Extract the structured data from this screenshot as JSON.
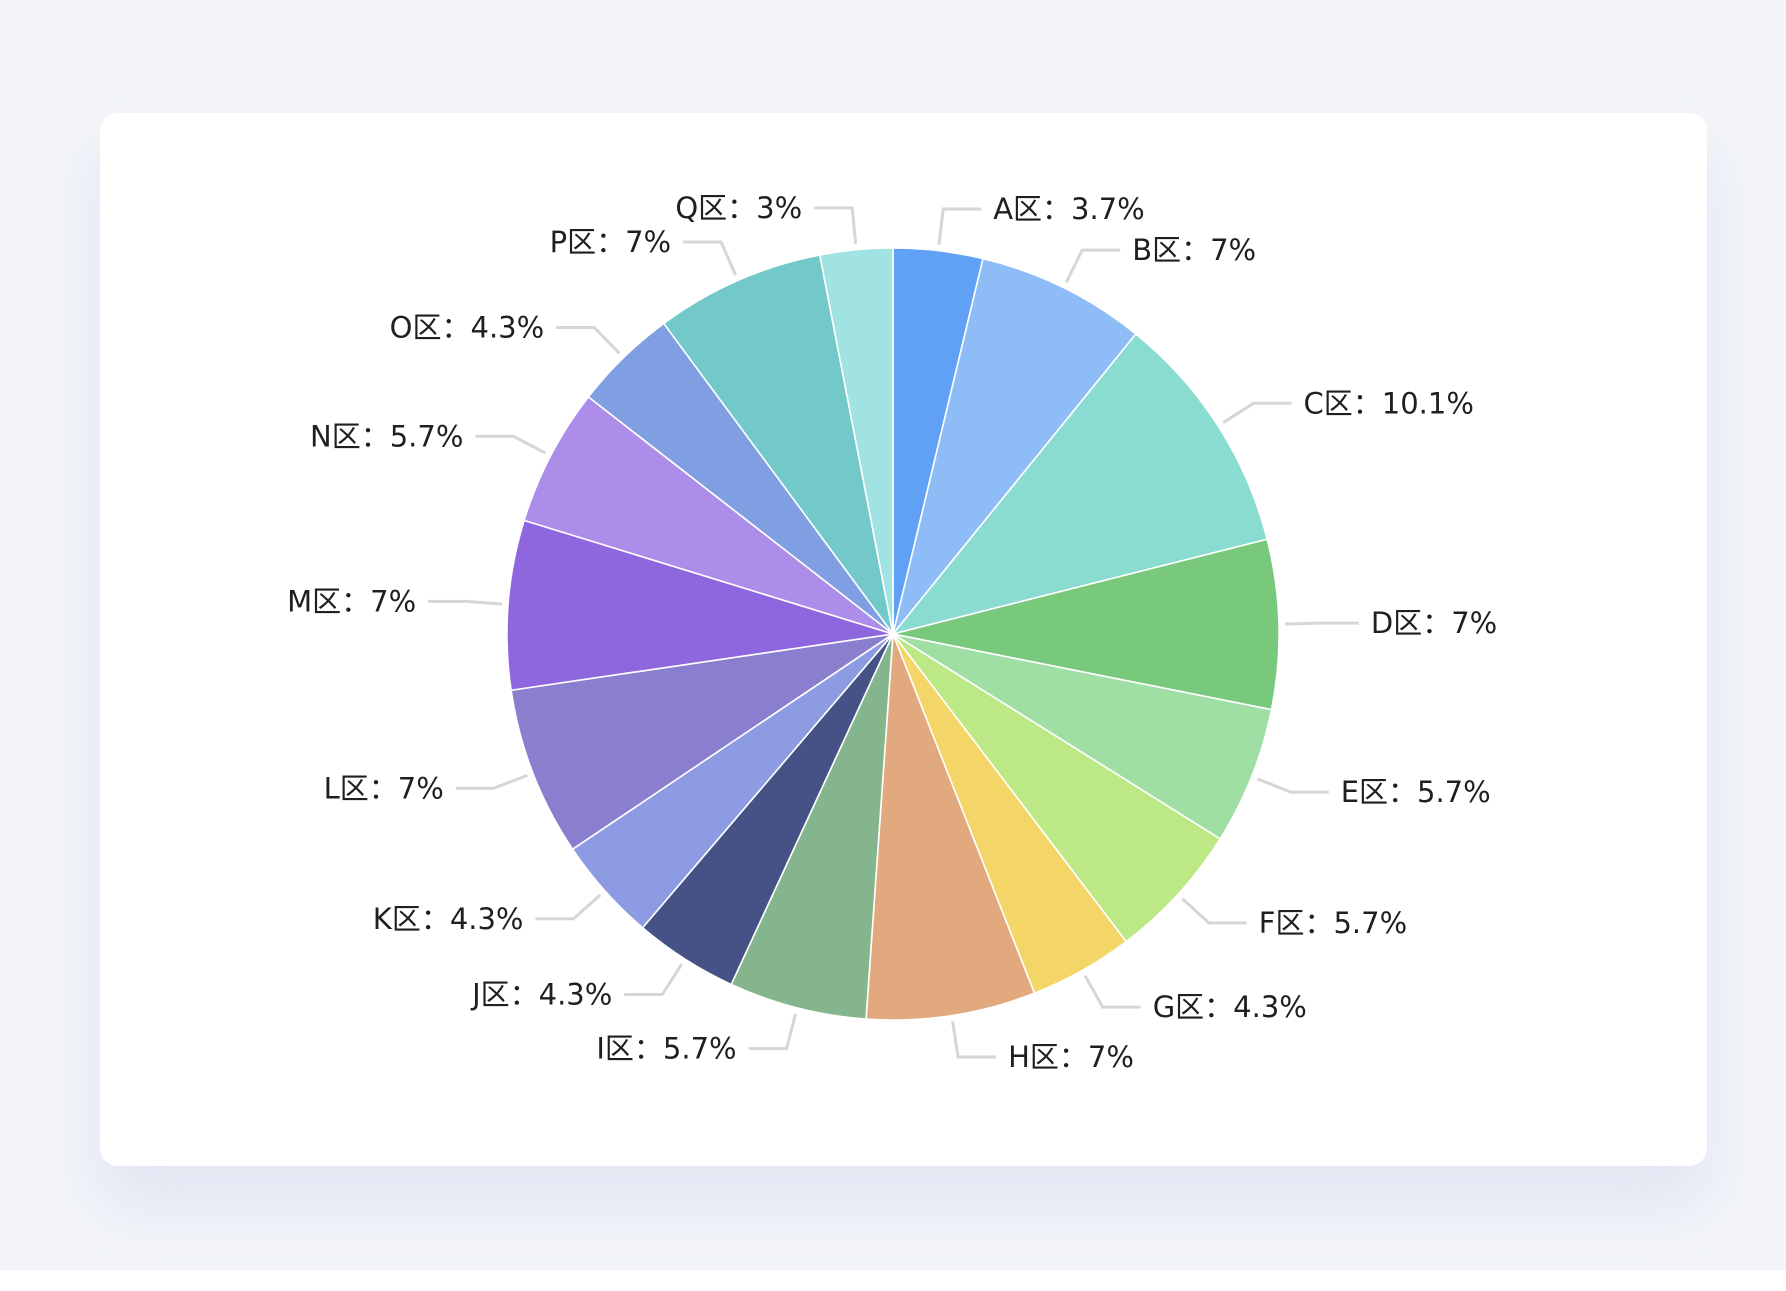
{
  "chart_data": {
    "type": "pie",
    "title": "",
    "categories": [
      "A区",
      "B区",
      "C区",
      "D区",
      "E区",
      "F区",
      "G区",
      "H区",
      "I区",
      "J区",
      "K区",
      "L区",
      "M区",
      "N区",
      "O区",
      "P区",
      "Q区"
    ],
    "values": [
      3.7,
      7,
      10.1,
      7,
      5.7,
      5.7,
      4.3,
      7,
      5.7,
      4.3,
      4.3,
      7,
      7,
      5.7,
      4.3,
      7,
      3
    ],
    "labels": [
      "A区：3.7%",
      "B区：7%",
      "C区：10.1%",
      "D区：7%",
      "E区：5.7%",
      "F区：5.7%",
      "G区：4.3%",
      "H区：7%",
      "I区：5.7%",
      "J区：4.3%",
      "K区：4.3%",
      "L区：7%",
      "M区：7%",
      "N区：5.7%",
      "O区：4.3%",
      "P区：7%",
      "Q区：3%"
    ],
    "colors": [
      "#60a1f6",
      "#8dbcf7",
      "#8adbd0",
      "#79c97d",
      "#9fdfa4",
      "#bce886",
      "#f3d667",
      "#e2a87e",
      "#84b58c",
      "#465185",
      "#8d9be3",
      "#8a7fcf",
      "#8e66de",
      "#ac8dea",
      "#809ee2",
      "#73c8c9",
      "#a0e3e2"
    ],
    "start_angle": "12 o'clock",
    "direction": "clockwise",
    "legend": "none"
  }
}
